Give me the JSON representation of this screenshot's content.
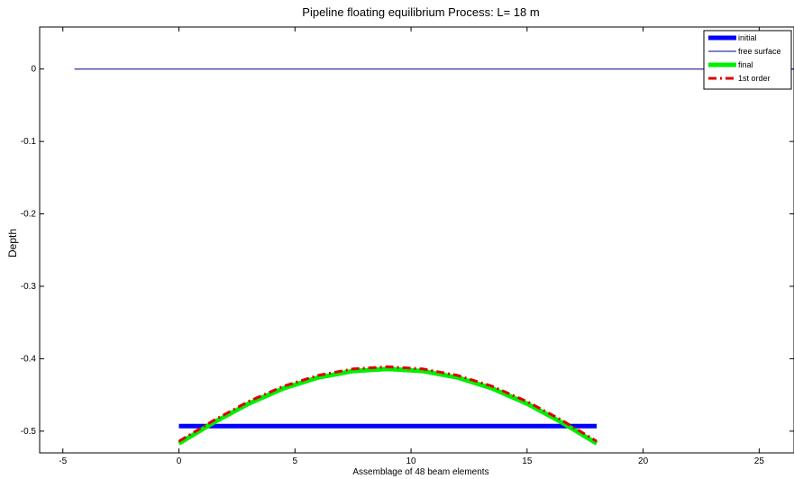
{
  "chart_data": {
    "type": "line",
    "title": "Pipeline floating equilibrium Process: L= 18 m",
    "xlabel": "Assemblage of 48 beam elements",
    "ylabel": "Depth",
    "xlim": [
      -6,
      26.5
    ],
    "ylim": [
      -0.53,
      0.058
    ],
    "xticks": [
      -5,
      0,
      5,
      10,
      15,
      20,
      25
    ],
    "xtick_labels": [
      "-5",
      "0",
      "5",
      "10",
      "15",
      "20",
      "25"
    ],
    "yticks": [
      0,
      -0.1,
      -0.2,
      -0.3,
      -0.4,
      -0.5
    ],
    "ytick_labels": [
      "0",
      "-0.1",
      "-0.2",
      "-0.3",
      "-0.4",
      "-0.5"
    ],
    "grid": false,
    "legend_position": "top-right",
    "series": [
      {
        "name": "initial",
        "color": "#0000ff",
        "style": "solid-thick",
        "x": [
          0,
          18
        ],
        "y": [
          -0.493,
          -0.493
        ]
      },
      {
        "name": "free surface",
        "color": "#000080",
        "style": "solid-thin",
        "x": [
          -4.5,
          26.5
        ],
        "y": [
          0,
          0
        ]
      },
      {
        "name": "final",
        "color": "#00ee00",
        "style": "solid-thick",
        "x": [
          0,
          1.5,
          3,
          4.5,
          6,
          7.5,
          9,
          10.5,
          12,
          13.5,
          15,
          16.5,
          18
        ],
        "y": [
          -0.517,
          -0.488,
          -0.462,
          -0.441,
          -0.426,
          -0.417,
          -0.414,
          -0.417,
          -0.426,
          -0.441,
          -0.462,
          -0.488,
          -0.517
        ]
      },
      {
        "name": "1st order",
        "color": "#dd0000",
        "style": "dash-dot",
        "x": [
          0,
          1.5,
          3,
          4.5,
          6,
          7.5,
          9,
          10.5,
          12,
          13.5,
          15,
          16.5,
          18
        ],
        "y": [
          -0.514,
          -0.485,
          -0.459,
          -0.438,
          -0.423,
          -0.414,
          -0.411,
          -0.414,
          -0.423,
          -0.438,
          -0.459,
          -0.485,
          -0.514
        ]
      }
    ]
  }
}
